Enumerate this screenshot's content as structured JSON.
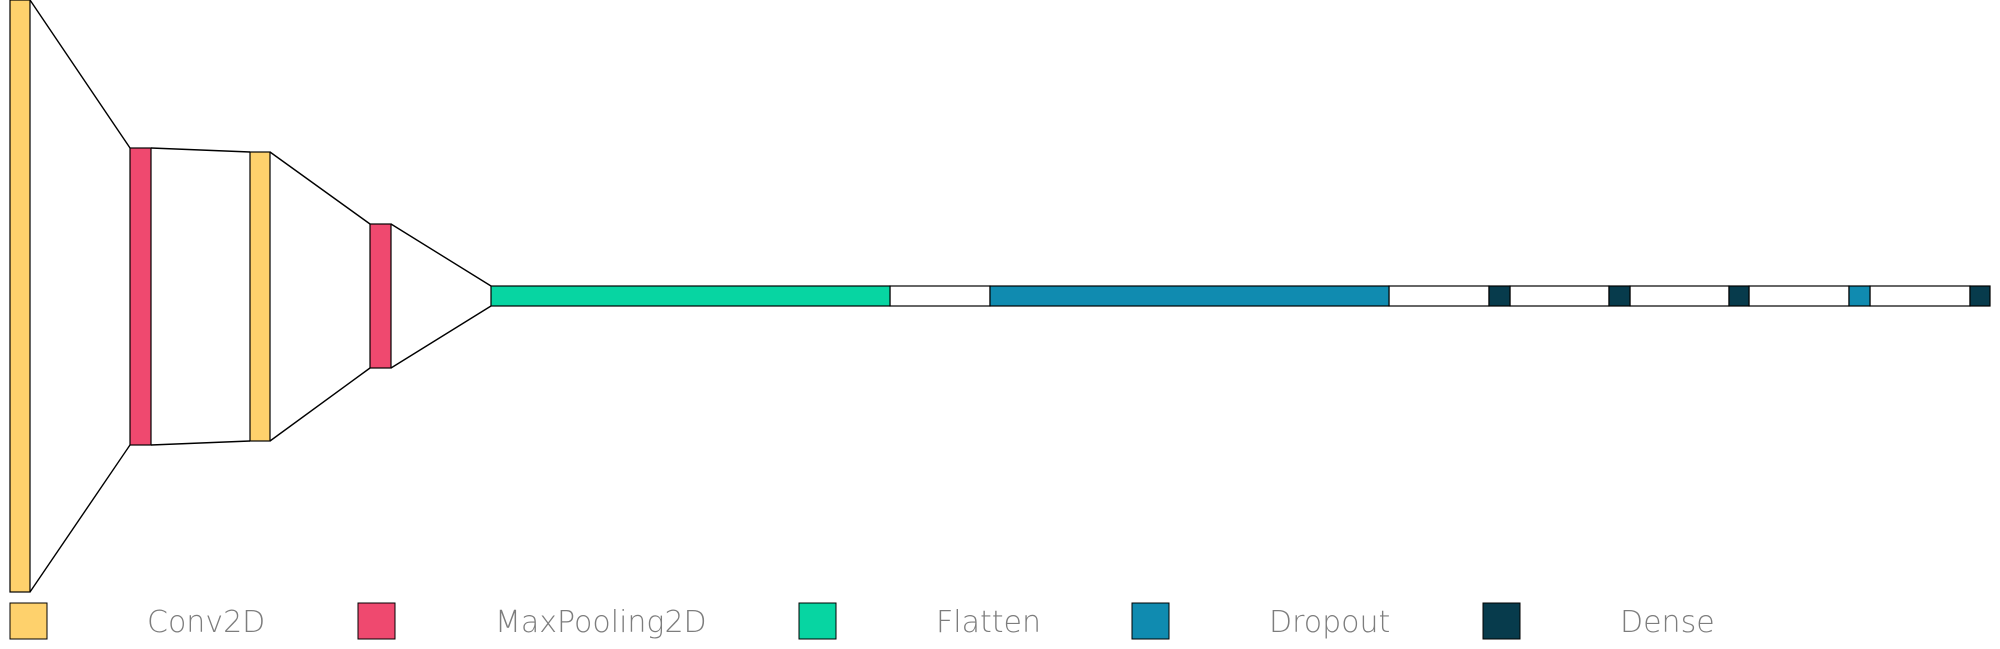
{
  "colors": {
    "Conv2D": "#fed16c",
    "MaxPooling2D": "#ef496f",
    "Flatten": "#07d5a2",
    "Dropout": "#108bb0",
    "Dense": "#073b4c",
    "gap": "#ffffff",
    "outline": "#000000"
  },
  "legend": [
    {
      "type": "Conv2D",
      "label": "Conv2D"
    },
    {
      "type": "MaxPooling2D",
      "label": "MaxPooling2D"
    },
    {
      "type": "Flatten",
      "label": "Flatten"
    },
    {
      "type": "Dropout",
      "label": "Dropout"
    },
    {
      "type": "Dense",
      "label": "Dense"
    }
  ],
  "layers": [
    {
      "type": "Conv2D"
    },
    {
      "type": "MaxPooling2D"
    },
    {
      "type": "Conv2D"
    },
    {
      "type": "MaxPooling2D"
    },
    {
      "type": "Flatten"
    },
    {
      "type": "Dropout"
    },
    {
      "type": "Dense"
    },
    {
      "type": "Dense"
    },
    {
      "type": "Dense"
    },
    {
      "type": "Dropout"
    },
    {
      "type": "Dense"
    }
  ]
}
